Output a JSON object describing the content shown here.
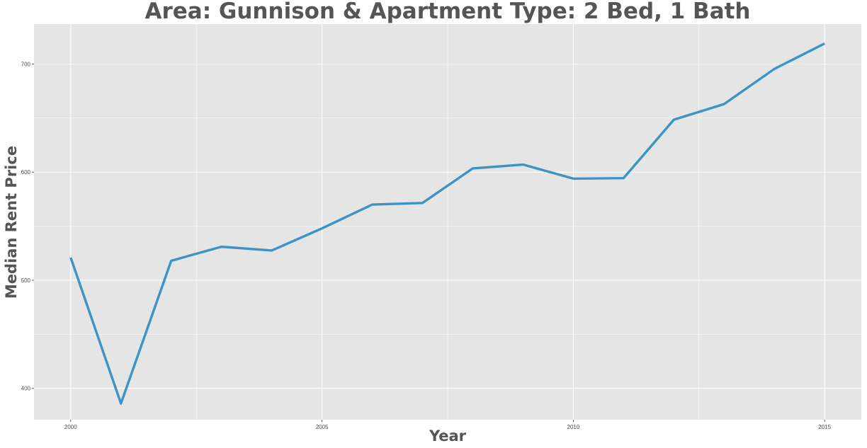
{
  "chart_data": {
    "type": "line",
    "title": "Area: Gunnison & Apartment Type: 2 Bed, 1 Bath",
    "xlabel": "Year",
    "ylabel": "Median Rent Price",
    "x": [
      2000,
      2001,
      2002,
      2003,
      2004,
      2005,
      2006,
      2007,
      2008,
      2009,
      2010,
      2011,
      2012,
      2013,
      2014,
      2015
    ],
    "series": [
      {
        "values": [
          521,
          386,
          518,
          531,
          527.5,
          548,
          570,
          571.5,
          603.5,
          607,
          594,
          594.5,
          648.5,
          663,
          695.5,
          719
        ],
        "color": "#3d93c5"
      }
    ],
    "xlim": [
      1999.27,
      2015.73
    ],
    "ylim": [
      371,
      737
    ],
    "xticks": [
      2000,
      2005,
      2010,
      2015
    ],
    "yticks": [
      400,
      500,
      600,
      700
    ],
    "grid": true,
    "panel_color": "#e5e5e5",
    "grid_color": "#ffffff"
  }
}
